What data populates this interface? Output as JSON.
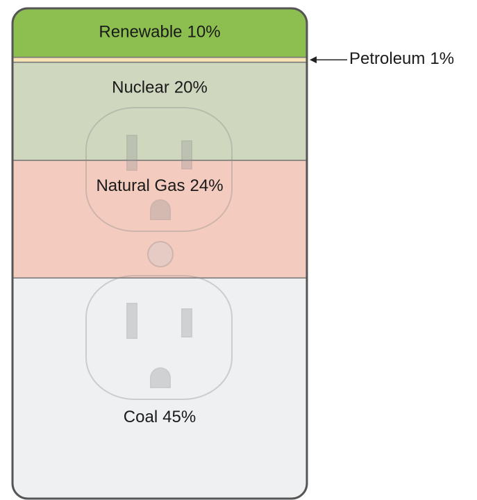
{
  "chart_data": {
    "type": "stacked_bar",
    "categories": [
      "Renewable",
      "Petroleum",
      "Nuclear",
      "Natural Gas",
      "Coal"
    ],
    "values": [
      10,
      1,
      20,
      24,
      45
    ],
    "value_labels": [
      "10%",
      "1%",
      "20%",
      "24%",
      "45%"
    ],
    "colors": [
      "#8cbf4f",
      "#f7e3b3",
      "#cfd8bf",
      "#f4cbbf",
      "#eef0f2"
    ]
  }
}
